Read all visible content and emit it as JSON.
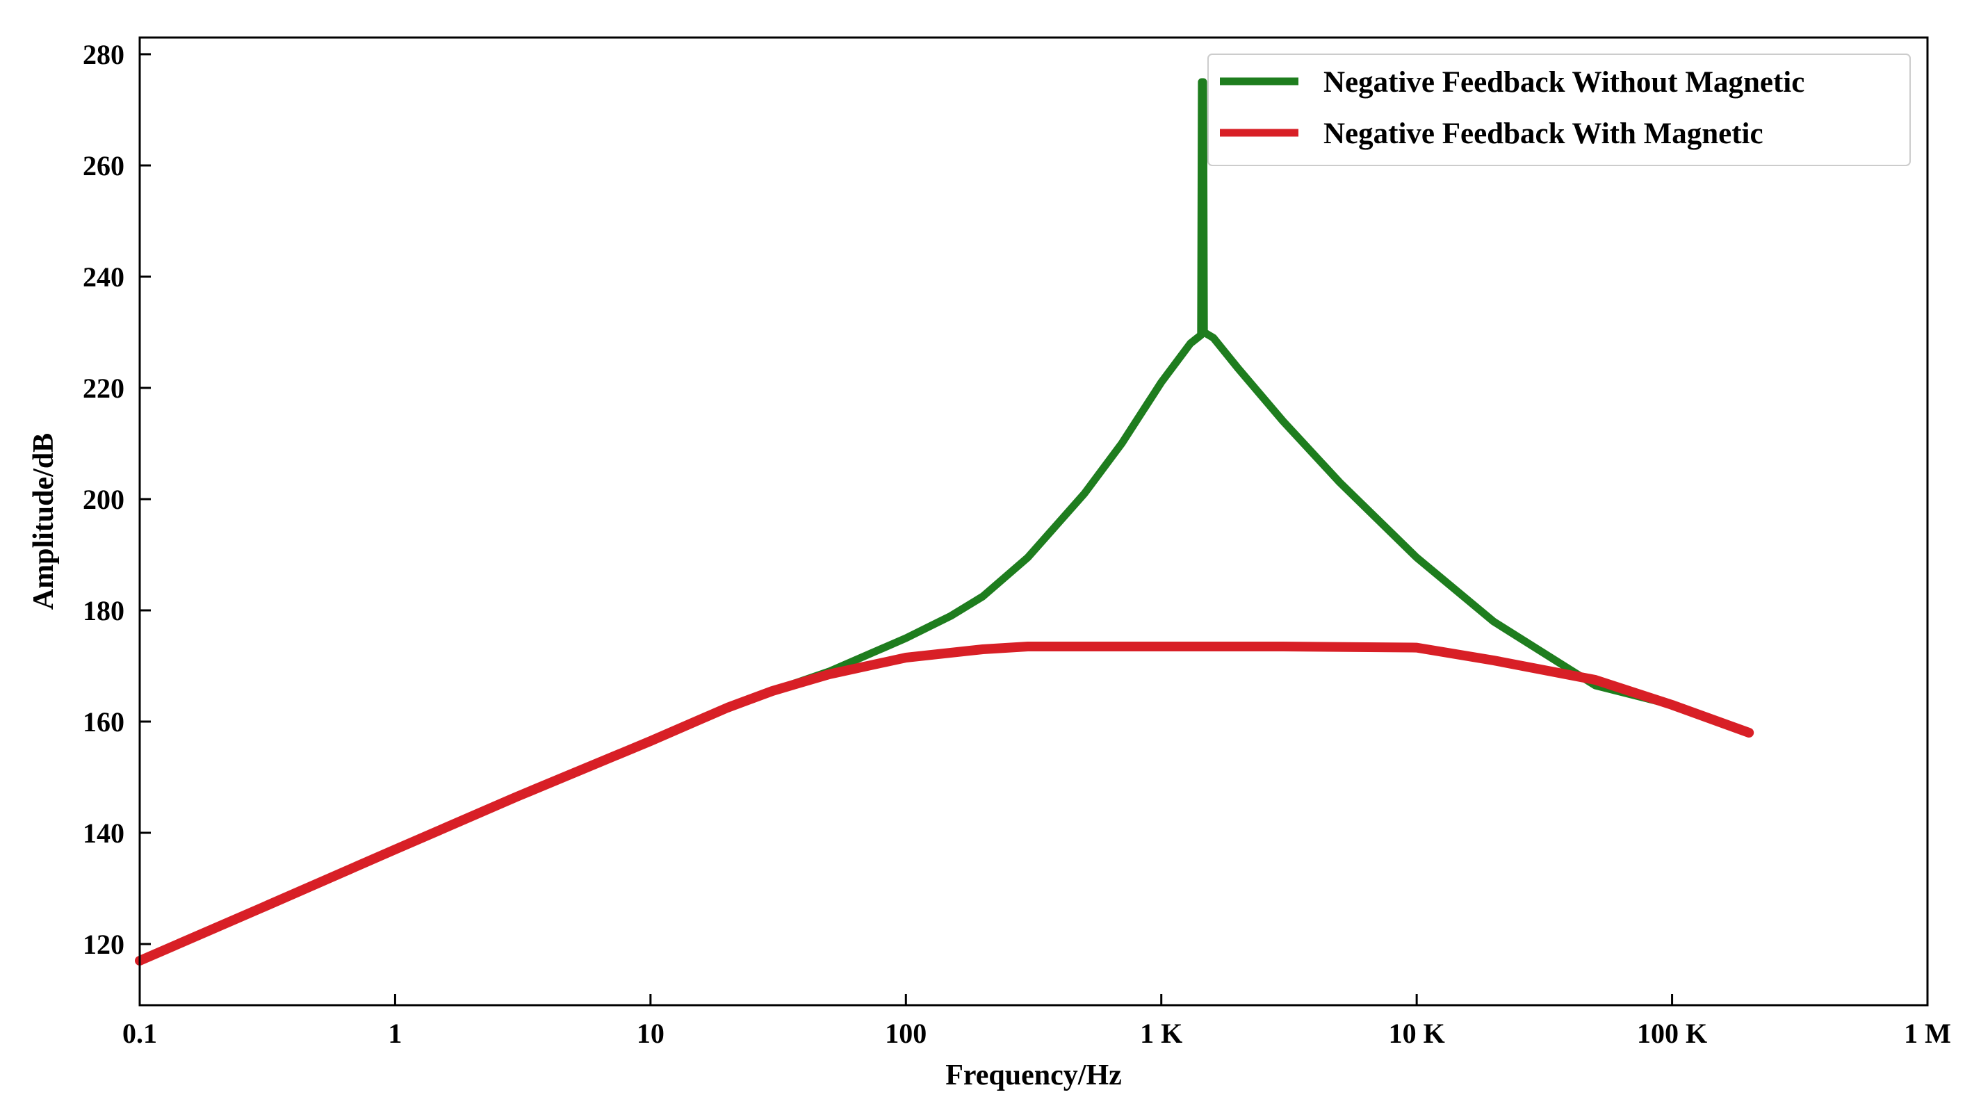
{
  "chart_data": {
    "type": "line",
    "title": "",
    "xlabel": "Frequency/Hz",
    "ylabel": "Amplitude/dB",
    "xscale": "log",
    "xlim": [
      0.1,
      1000000
    ],
    "ylim": [
      109,
      283
    ],
    "grid": false,
    "legend_position": "top-right",
    "x_ticks": [
      {
        "value": 0.1,
        "label": "0.1"
      },
      {
        "value": 1,
        "label": "1"
      },
      {
        "value": 10,
        "label": "10"
      },
      {
        "value": 100,
        "label": "100"
      },
      {
        "value": 1000,
        "label": "1 K"
      },
      {
        "value": 10000,
        "label": "10 K"
      },
      {
        "value": 100000,
        "label": "100 K"
      },
      {
        "value": 1000000,
        "label": "1 M"
      }
    ],
    "y_ticks": [
      {
        "value": 120,
        "label": "120"
      },
      {
        "value": 140,
        "label": "140"
      },
      {
        "value": 160,
        "label": "160"
      },
      {
        "value": 180,
        "label": "180"
      },
      {
        "value": 200,
        "label": "200"
      },
      {
        "value": 220,
        "label": "220"
      },
      {
        "value": 240,
        "label": "240"
      },
      {
        "value": 260,
        "label": "260"
      },
      {
        "value": 280,
        "label": "280"
      }
    ],
    "series": [
      {
        "name": "Negative Feedback Without Magnetic",
        "color": "#1e7d1e",
        "points": [
          [
            0.1,
            117
          ],
          [
            0.3,
            126.5
          ],
          [
            1,
            137
          ],
          [
            3,
            146.5
          ],
          [
            10,
            156.5
          ],
          [
            20,
            162.5
          ],
          [
            30,
            165.5
          ],
          [
            50,
            169
          ],
          [
            100,
            175
          ],
          [
            150,
            179
          ],
          [
            200,
            182.5
          ],
          [
            300,
            189.5
          ],
          [
            500,
            201
          ],
          [
            700,
            210
          ],
          [
            1000,
            221
          ],
          [
            1300,
            228
          ],
          [
            1430,
            229.5
          ],
          [
            1440,
            275
          ],
          [
            1460,
            275
          ],
          [
            1470,
            230
          ],
          [
            1600,
            229
          ],
          [
            2000,
            223.5
          ],
          [
            3000,
            214
          ],
          [
            5000,
            203
          ],
          [
            10000,
            189.5
          ],
          [
            20000,
            178
          ],
          [
            50000,
            166.5
          ],
          [
            100000,
            163
          ],
          [
            200000,
            158
          ]
        ]
      },
      {
        "name": "Negative Feedback With Magnetic",
        "color": "#d81f26",
        "points": [
          [
            0.1,
            117
          ],
          [
            0.3,
            126.5
          ],
          [
            1,
            137
          ],
          [
            3,
            146.5
          ],
          [
            10,
            156.5
          ],
          [
            20,
            162.5
          ],
          [
            30,
            165.5
          ],
          [
            50,
            168.5
          ],
          [
            100,
            171.5
          ],
          [
            200,
            173
          ],
          [
            300,
            173.5
          ],
          [
            1000,
            173.5
          ],
          [
            3000,
            173.5
          ],
          [
            10000,
            173.3
          ],
          [
            20000,
            171
          ],
          [
            50000,
            167.5
          ],
          [
            100000,
            163
          ],
          [
            200000,
            158
          ]
        ]
      }
    ]
  }
}
